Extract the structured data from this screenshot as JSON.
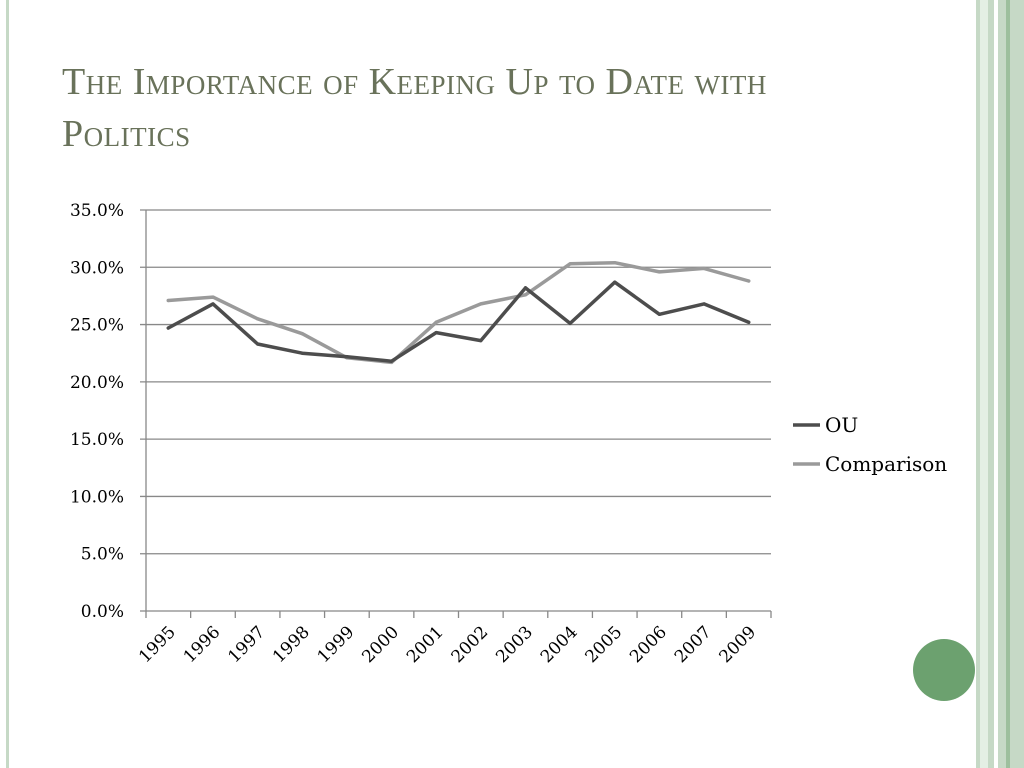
{
  "slide": {
    "title": "The Importance of Keeping Up to Date with Politics",
    "theme": {
      "title_color": "#69725a",
      "bar_colors": [
        "#c6d9c6",
        "#e4efe4",
        "#9dbf9d",
        "#ffffff"
      ],
      "dot_color": "#6ca16f"
    }
  },
  "chart_data": {
    "type": "line",
    "title": "",
    "xlabel": "",
    "ylabel": "",
    "categories": [
      "1995",
      "1996",
      "1997",
      "1998",
      "1999",
      "2000",
      "2001",
      "2002",
      "2003",
      "2004",
      "2005",
      "2006",
      "2007",
      "2009"
    ],
    "series": [
      {
        "name": "OU",
        "color": "#4d4d4d",
        "values": [
          24.7,
          26.8,
          23.3,
          22.5,
          22.2,
          21.8,
          24.3,
          23.6,
          28.2,
          25.1,
          28.7,
          25.9,
          26.8,
          25.2
        ]
      },
      {
        "name": "Comparison",
        "color": "#9a9a9a",
        "values": [
          27.1,
          27.4,
          25.5,
          24.2,
          22.1,
          21.7,
          25.2,
          26.8,
          27.6,
          30.3,
          30.4,
          29.6,
          29.9,
          28.8
        ]
      }
    ],
    "ylim": [
      0,
      35
    ],
    "yticks": [
      "0.0%",
      "5.0%",
      "10.0%",
      "15.0%",
      "20.0%",
      "25.0%",
      "30.0%",
      "35.0%"
    ],
    "grid": true,
    "legend": "right"
  }
}
